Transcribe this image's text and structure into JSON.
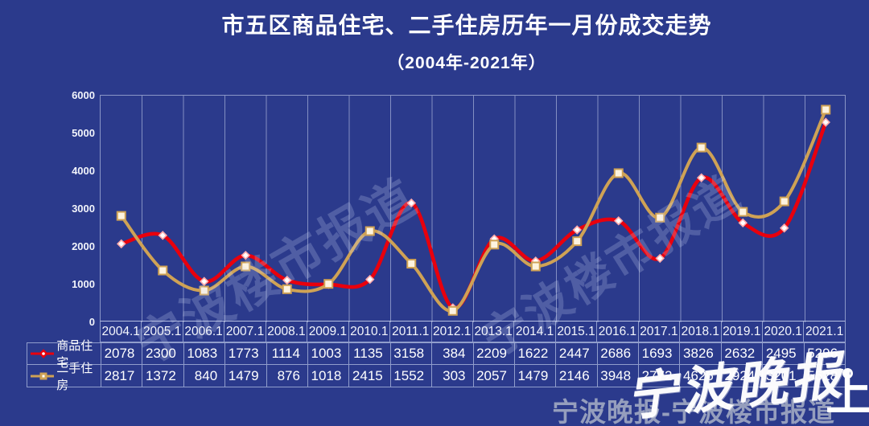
{
  "header": {
    "title": "市五区商品住宅、二手住房历年一月份成交走势",
    "subtitle": "（2004年-2021年）"
  },
  "colors": {
    "background": "#2b3a8c",
    "series1": "#e8000d",
    "series2": "#cfa255",
    "grid_line": "rgba(190,200,230,0.6)",
    "table_border": "rgba(170,182,220,0.8)",
    "text": "#ffffff"
  },
  "chart_data": {
    "type": "line",
    "title": "市五区商品住宅、二手住房历年一月份成交走势（2004年-2021年）",
    "x": [
      "2004.1",
      "2005.1",
      "2006.1",
      "2007.1",
      "2008.1",
      "2009.1",
      "2010.1",
      "2011.1",
      "2012.1",
      "2013.1",
      "2014.1",
      "2015.1",
      "2016.1",
      "2017.1",
      "2018.1",
      "2019.1",
      "2020.1",
      "2021.1"
    ],
    "series": [
      {
        "name": "商品住宅",
        "color": "#e8000d",
        "marker": "diamond",
        "values": [
          2078,
          2300,
          1083,
          1773,
          1114,
          1003,
          1135,
          3158,
          384,
          2209,
          1622,
          2447,
          2686,
          1693,
          3826,
          2632,
          2495,
          5296
        ]
      },
      {
        "name": "二手住房",
        "color": "#cfa255",
        "marker": "square",
        "values": [
          2817,
          1372,
          840,
          1479,
          876,
          1018,
          2415,
          1552,
          303,
          2057,
          1479,
          2146,
          3948,
          2772,
          4626,
          2924,
          3201,
          5628
        ]
      }
    ],
    "ylim": [
      0,
      6000
    ],
    "yticks": [
      0,
      1000,
      2000,
      3000,
      4000,
      5000,
      6000
    ],
    "grid": "vertical-only",
    "line_style": "smooth",
    "legend_position": "left-of-data-table",
    "data_table_shown": true
  },
  "watermarks": {
    "diagonal1": "宁波楼市报道",
    "diagonal2": "宁波楼市报道",
    "bottom_gray": "宁波晚报-宁波楼市报道",
    "script_overlay": "宁波晚报",
    "corner_logo": "上"
  }
}
